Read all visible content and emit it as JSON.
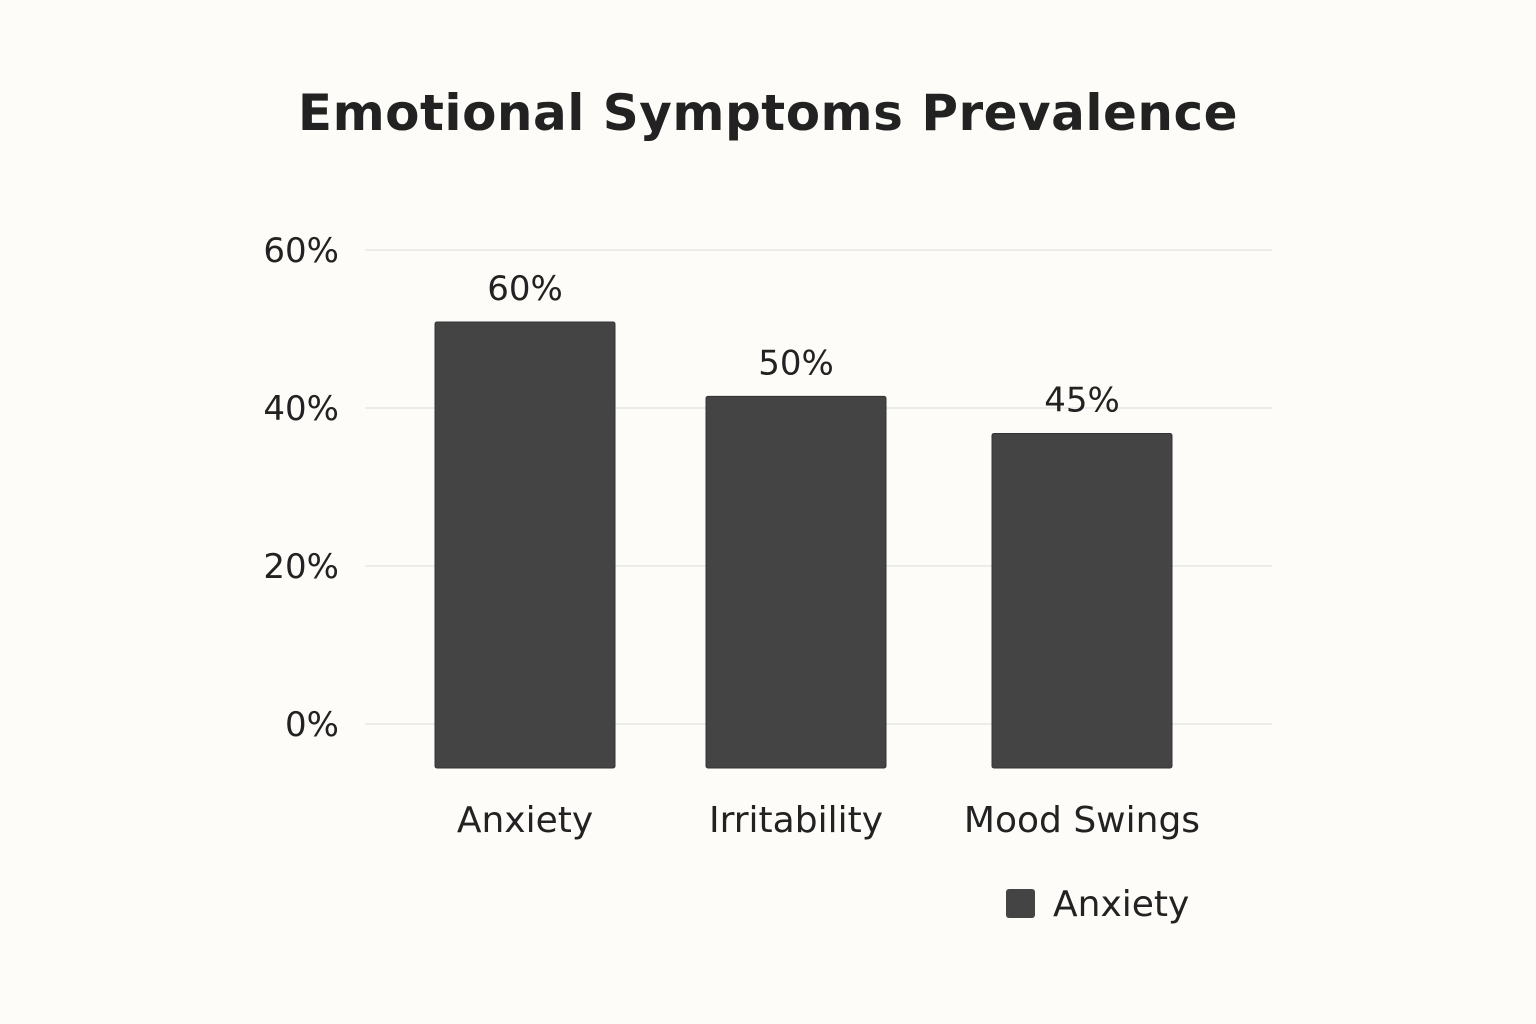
{
  "chart_data": {
    "type": "bar",
    "title": "Emotional Symptoms Prevalence",
    "categories": [
      "Anxiety",
      "Irritability",
      "Mood Swings"
    ],
    "series": [
      {
        "name": "Anxiety",
        "values": [
          60,
          50,
          45
        ],
        "value_labels": [
          "60%",
          "50%",
          "45%"
        ]
      }
    ],
    "ylim": [
      0,
      60
    ],
    "yticks": [
      0,
      20,
      40,
      60
    ],
    "ytick_labels": [
      "0%",
      "20%",
      "40%",
      "60%"
    ],
    "xlabel": "",
    "ylabel": "",
    "grid": true,
    "legend": "bottom-right",
    "bar_color": "#444444",
    "grid_color": "#e6e6e6"
  }
}
